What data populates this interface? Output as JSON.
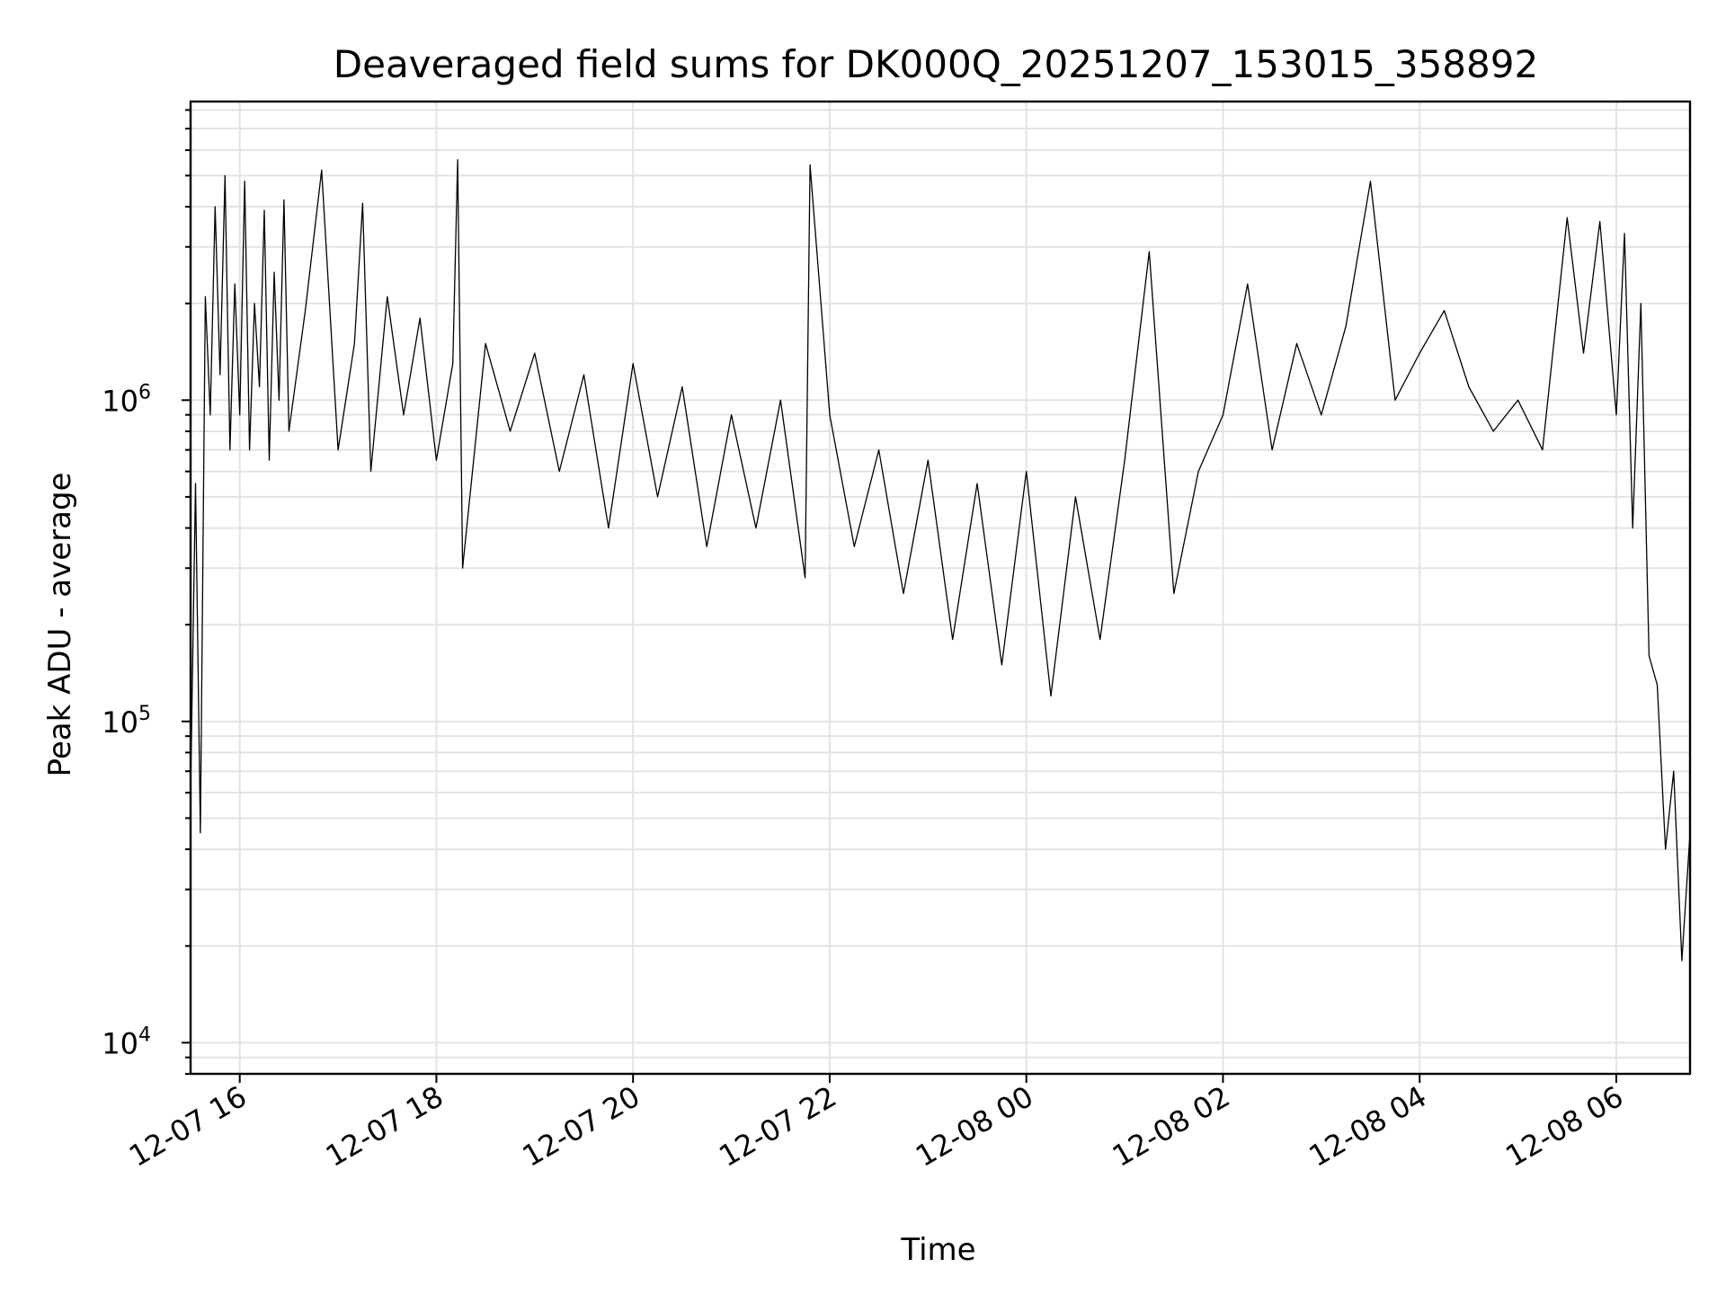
{
  "chart_data": {
    "type": "line",
    "title": "Deaveraged field sums for DK000Q_20251207_153015_358892",
    "xlabel": "Time",
    "ylabel": "Peak ADU - average",
    "yscale": "log",
    "grid": true,
    "grid_minor": true,
    "xlim": [
      "2025-12-07T15:30",
      "2025-12-08T06:45"
    ],
    "ylim": [
      8000,
      8500000
    ],
    "x_ticks": [
      {
        "value": "2025-12-07T16:00",
        "label": "12-07 16"
      },
      {
        "value": "2025-12-07T18:00",
        "label": "12-07 18"
      },
      {
        "value": "2025-12-07T20:00",
        "label": "12-07 20"
      },
      {
        "value": "2025-12-07T22:00",
        "label": "12-07 22"
      },
      {
        "value": "2025-12-08T00:00",
        "label": "12-08 00"
      },
      {
        "value": "2025-12-08T02:00",
        "label": "12-08 02"
      },
      {
        "value": "2025-12-08T04:00",
        "label": "12-08 04"
      },
      {
        "value": "2025-12-08T06:00",
        "label": "12-08 06"
      }
    ],
    "y_ticks": [
      {
        "value": 10000,
        "base": "10",
        "exp": "4"
      },
      {
        "value": 100000,
        "base": "10",
        "exp": "5"
      },
      {
        "value": 1000000,
        "base": "10",
        "exp": "6"
      }
    ],
    "series": [
      {
        "color": "#000000",
        "x": [
          "2025-12-07T15:30",
          "2025-12-07T15:33",
          "2025-12-07T15:36",
          "2025-12-07T15:39",
          "2025-12-07T15:42",
          "2025-12-07T15:45",
          "2025-12-07T15:48",
          "2025-12-07T15:51",
          "2025-12-07T15:54",
          "2025-12-07T15:57",
          "2025-12-07T16:00",
          "2025-12-07T16:03",
          "2025-12-07T16:06",
          "2025-12-07T16:09",
          "2025-12-07T16:12",
          "2025-12-07T16:15",
          "2025-12-07T16:18",
          "2025-12-07T16:21",
          "2025-12-07T16:24",
          "2025-12-07T16:27",
          "2025-12-07T16:30",
          "2025-12-07T16:40",
          "2025-12-07T16:50",
          "2025-12-07T17:00",
          "2025-12-07T17:10",
          "2025-12-07T17:15",
          "2025-12-07T17:20",
          "2025-12-07T17:30",
          "2025-12-07T17:40",
          "2025-12-07T17:50",
          "2025-12-07T18:00",
          "2025-12-07T18:10",
          "2025-12-07T18:13",
          "2025-12-07T18:16",
          "2025-12-07T18:30",
          "2025-12-07T18:45",
          "2025-12-07T19:00",
          "2025-12-07T19:15",
          "2025-12-07T19:30",
          "2025-12-07T19:45",
          "2025-12-07T20:00",
          "2025-12-07T20:15",
          "2025-12-07T20:30",
          "2025-12-07T20:45",
          "2025-12-07T21:00",
          "2025-12-07T21:15",
          "2025-12-07T21:30",
          "2025-12-07T21:45",
          "2025-12-07T21:48",
          "2025-12-07T22:00",
          "2025-12-07T22:15",
          "2025-12-07T22:30",
          "2025-12-07T22:45",
          "2025-12-07T23:00",
          "2025-12-07T23:15",
          "2025-12-07T23:30",
          "2025-12-07T23:45",
          "2025-12-08T00:00",
          "2025-12-08T00:15",
          "2025-12-08T00:30",
          "2025-12-08T00:45",
          "2025-12-08T01:00",
          "2025-12-08T01:15",
          "2025-12-08T01:30",
          "2025-12-08T01:45",
          "2025-12-08T02:00",
          "2025-12-08T02:15",
          "2025-12-08T02:30",
          "2025-12-08T02:45",
          "2025-12-08T03:00",
          "2025-12-08T03:15",
          "2025-12-08T03:30",
          "2025-12-08T03:45",
          "2025-12-08T04:00",
          "2025-12-08T04:15",
          "2025-12-08T04:30",
          "2025-12-08T04:45",
          "2025-12-08T05:00",
          "2025-12-08T05:15",
          "2025-12-08T05:30",
          "2025-12-08T05:40",
          "2025-12-08T05:50",
          "2025-12-08T06:00",
          "2025-12-08T06:05",
          "2025-12-08T06:10",
          "2025-12-08T06:15",
          "2025-12-08T06:20",
          "2025-12-08T06:25",
          "2025-12-08T06:30",
          "2025-12-08T06:35",
          "2025-12-08T06:40",
          "2025-12-08T06:45"
        ],
        "y": [
          60000,
          550000,
          45000,
          2100000,
          900000,
          4000000,
          1200000,
          5000000,
          700000,
          2300000,
          900000,
          4800000,
          700000,
          2000000,
          1100000,
          3900000,
          650000,
          2500000,
          1000000,
          4200000,
          800000,
          1900000,
          5200000,
          700000,
          1500000,
          4100000,
          600000,
          2100000,
          900000,
          1800000,
          650000,
          1300000,
          5600000,
          300000,
          1500000,
          800000,
          1400000,
          600000,
          1200000,
          400000,
          1300000,
          500000,
          1100000,
          350000,
          900000,
          400000,
          1000000,
          280000,
          5400000,
          900000,
          350000,
          700000,
          250000,
          650000,
          180000,
          550000,
          150000,
          600000,
          120000,
          500000,
          180000,
          650000,
          2900000,
          250000,
          600000,
          900000,
          2300000,
          700000,
          1500000,
          900000,
          1700000,
          4800000,
          1000000,
          1400000,
          1900000,
          1100000,
          800000,
          1000000,
          700000,
          3700000,
          1400000,
          3600000,
          900000,
          3300000,
          400000,
          2000000,
          160000,
          130000,
          40000,
          70000,
          18000,
          45000
        ]
      }
    ]
  }
}
